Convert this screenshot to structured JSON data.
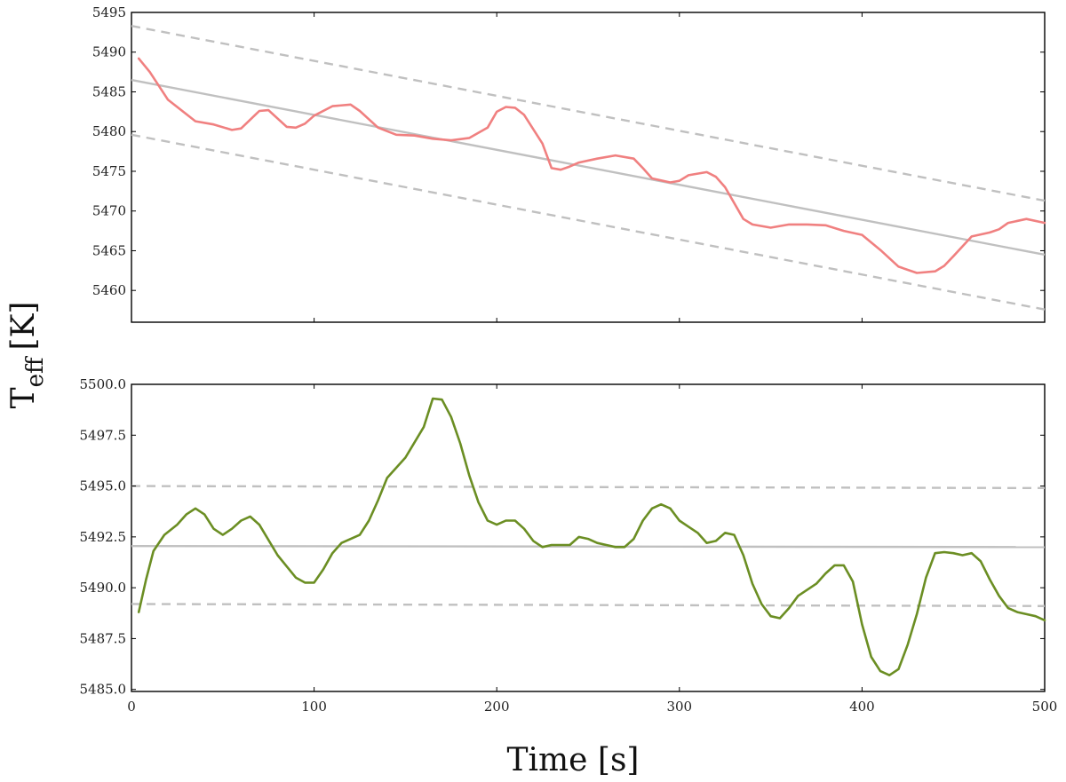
{
  "figure": {
    "ylabel_main": "T",
    "ylabel_sub": "eff",
    "ylabel_unit": "[K]",
    "xlabel": "Time [s]"
  },
  "colors": {
    "top_series": "#f08080",
    "bottom_series": "#6b8e23",
    "trend": "#c0c0c0",
    "band": "#c0c0c0",
    "axis": "#000000"
  },
  "chart_data": [
    {
      "type": "line",
      "panel": "top",
      "xlim": [
        0,
        500
      ],
      "ylim": [
        5456,
        5495
      ],
      "xticks": [
        0,
        100,
        200,
        300,
        400,
        500
      ],
      "yticks": [
        5460,
        5465,
        5470,
        5475,
        5480,
        5485,
        5490,
        5495
      ],
      "ytick_labels": [
        "5460",
        "5465",
        "5470",
        "5475",
        "5480",
        "5485",
        "5490",
        "5495"
      ],
      "x": [
        4,
        10,
        20,
        35,
        45,
        55,
        60,
        70,
        75,
        85,
        90,
        95,
        100,
        110,
        120,
        125,
        135,
        145,
        155,
        165,
        175,
        185,
        195,
        200,
        205,
        210,
        215,
        225,
        230,
        235,
        240,
        245,
        255,
        265,
        275,
        280,
        285,
        295,
        300,
        305,
        315,
        320,
        325,
        335,
        340,
        350,
        360,
        370,
        380,
        390,
        400,
        410,
        420,
        430,
        440,
        445,
        450,
        460,
        470,
        475,
        480,
        490,
        500
      ],
      "series": [
        {
          "name": "Teff",
          "values": [
            5489.2,
            5487.5,
            5484.0,
            5481.3,
            5480.9,
            5480.2,
            5480.4,
            5482.6,
            5482.7,
            5480.6,
            5480.5,
            5481.0,
            5482.0,
            5483.2,
            5483.4,
            5482.6,
            5480.5,
            5479.6,
            5479.5,
            5479.1,
            5478.9,
            5479.2,
            5480.5,
            5482.5,
            5483.1,
            5483.0,
            5482.1,
            5478.5,
            5475.4,
            5475.2,
            5475.6,
            5476.1,
            5476.6,
            5477.0,
            5476.6,
            5475.4,
            5474.1,
            5473.6,
            5473.8,
            5474.5,
            5474.9,
            5474.3,
            5473.0,
            5469.0,
            5468.3,
            5467.9,
            5468.3,
            5468.3,
            5468.2,
            5467.5,
            5467.0,
            5465.1,
            5463.0,
            5462.2,
            5462.4,
            5463.1,
            5464.3,
            5466.8,
            5467.3,
            5467.7,
            5468.5,
            5469.0,
            5468.5
          ]
        }
      ],
      "trend_line": {
        "x": [
          0,
          500
        ],
        "y": [
          5486.5,
          5464.5
        ]
      },
      "band_upper": {
        "x": [
          0,
          500
        ],
        "y": [
          5493.3,
          5471.3
        ]
      },
      "band_lower": {
        "x": [
          0,
          500
        ],
        "y": [
          5479.6,
          5457.6
        ]
      }
    },
    {
      "type": "line",
      "panel": "bottom",
      "xlim": [
        0,
        500
      ],
      "ylim": [
        5484.9,
        5500.0
      ],
      "xticks": [
        0,
        100,
        200,
        300,
        400,
        500
      ],
      "xtick_labels": [
        "0",
        "100",
        "200",
        "300",
        "400",
        "500"
      ],
      "yticks": [
        5485.0,
        5487.5,
        5490.0,
        5492.5,
        5495.0,
        5497.5,
        5500.0
      ],
      "ytick_labels": [
        "5485.0",
        "5487.5",
        "5490.0",
        "5492.5",
        "5495.0",
        "5497.5",
        "5500.0"
      ],
      "x": [
        4,
        8,
        12,
        18,
        25,
        30,
        35,
        40,
        45,
        50,
        55,
        60,
        65,
        70,
        80,
        90,
        95,
        100,
        105,
        110,
        115,
        125,
        130,
        135,
        140,
        150,
        160,
        165,
        170,
        175,
        180,
        185,
        190,
        195,
        200,
        205,
        210,
        215,
        220,
        225,
        230,
        235,
        240,
        245,
        250,
        255,
        260,
        265,
        270,
        275,
        280,
        285,
        290,
        295,
        300,
        305,
        310,
        315,
        320,
        325,
        330,
        335,
        340,
        345,
        350,
        355,
        360,
        365,
        370,
        375,
        380,
        385,
        390,
        395,
        400,
        405,
        410,
        415,
        420,
        425,
        430,
        435,
        440,
        445,
        450,
        455,
        460,
        465,
        470,
        475,
        480,
        485,
        490,
        495,
        500
      ],
      "series": [
        {
          "name": "Teff",
          "values": [
            5488.8,
            5490.4,
            5491.8,
            5492.6,
            5493.1,
            5493.6,
            5493.9,
            5493.6,
            5492.9,
            5492.6,
            5492.9,
            5493.3,
            5493.5,
            5493.1,
            5491.6,
            5490.5,
            5490.25,
            5490.25,
            5490.9,
            5491.7,
            5492.2,
            5492.6,
            5493.3,
            5494.3,
            5495.4,
            5496.4,
            5497.9,
            5499.3,
            5499.25,
            5498.4,
            5497.1,
            5495.5,
            5494.2,
            5493.3,
            5493.1,
            5493.3,
            5493.3,
            5492.9,
            5492.3,
            5492.0,
            5492.1,
            5492.1,
            5492.1,
            5492.5,
            5492.4,
            5492.2,
            5492.1,
            5492.0,
            5492.0,
            5492.4,
            5493.3,
            5493.9,
            5494.1,
            5493.9,
            5493.3,
            5493.0,
            5492.7,
            5492.2,
            5492.3,
            5492.7,
            5492.6,
            5491.6,
            5490.2,
            5489.2,
            5488.6,
            5488.5,
            5489.0,
            5489.6,
            5489.9,
            5490.2,
            5490.7,
            5491.1,
            5491.1,
            5490.3,
            5488.2,
            5486.6,
            5485.9,
            5485.7,
            5486.0,
            5487.2,
            5488.7,
            5490.5,
            5491.7,
            5491.75,
            5491.7,
            5491.6,
            5491.7,
            5491.3,
            5490.4,
            5489.6,
            5489.0,
            5488.8,
            5488.7,
            5488.6,
            5488.4
          ]
        }
      ],
      "trend_line": {
        "x": [
          0,
          500
        ],
        "y": [
          5492.05,
          5492.0
        ]
      },
      "band_upper": {
        "x": [
          0,
          500
        ],
        "y": [
          5495.0,
          5494.9
        ]
      },
      "band_lower": {
        "x": [
          0,
          500
        ],
        "y": [
          5489.2,
          5489.1
        ]
      }
    }
  ]
}
